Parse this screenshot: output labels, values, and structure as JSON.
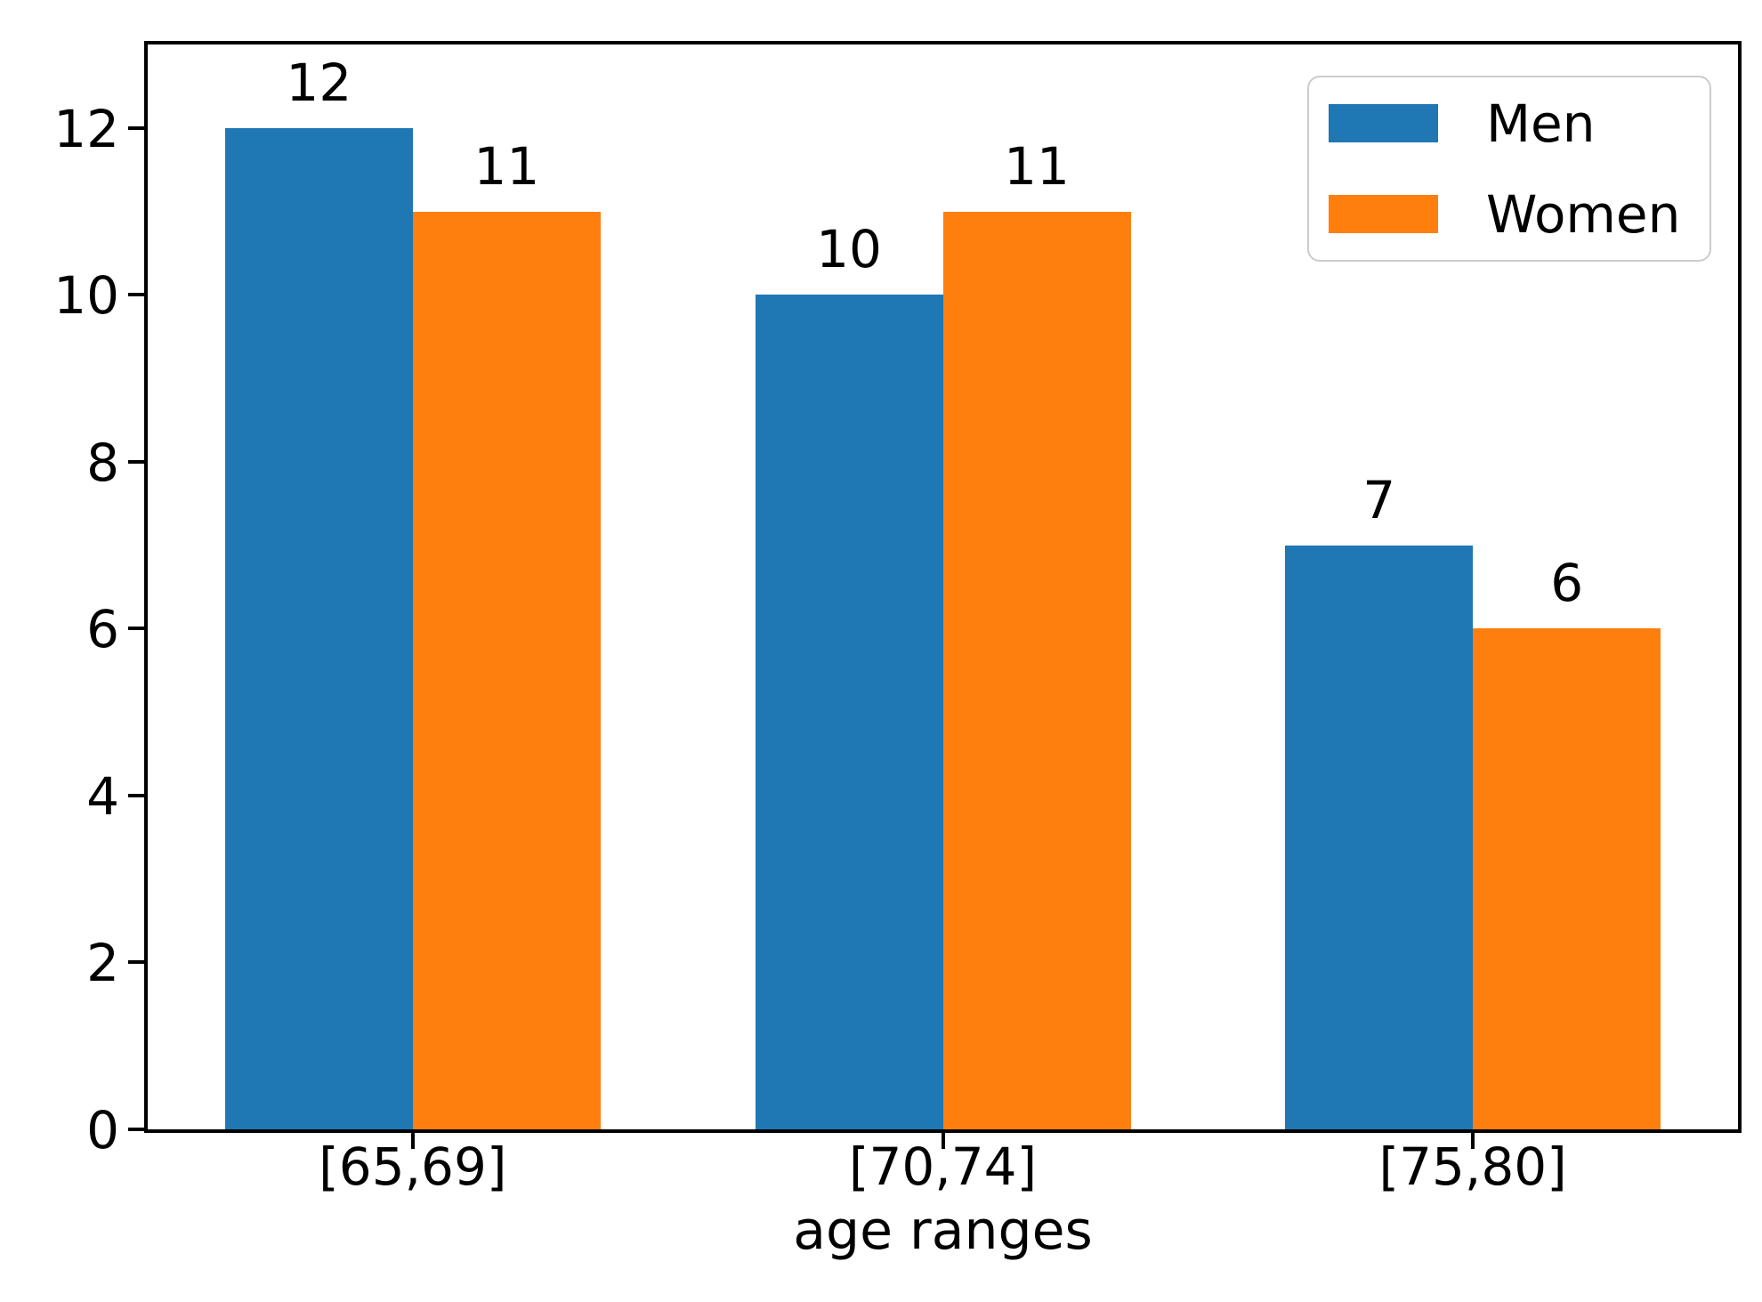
{
  "chart_data": {
    "type": "bar",
    "title": "",
    "xlabel": "age ranges",
    "ylabel": "",
    "categories": [
      "[65,69]",
      "[70,74]",
      "[75,80]"
    ],
    "series": [
      {
        "name": "Men",
        "color": "#1f77b4",
        "values": [
          12,
          10,
          7
        ]
      },
      {
        "name": "Women",
        "color": "#ff7f0e",
        "values": [
          11,
          11,
          6
        ]
      }
    ],
    "bar_value_labels_shown": true,
    "yticks": [
      "0",
      "2",
      "4",
      "6",
      "8",
      "10",
      "12"
    ],
    "ytick_values": [
      0,
      2,
      4,
      6,
      8,
      10,
      12
    ],
    "ylim": [
      0,
      13
    ],
    "grid": false,
    "legend": {
      "position": "upper right",
      "entries": [
        {
          "label": "Men",
          "color": "#1f77b4"
        },
        {
          "label": "Women",
          "color": "#ff7f0e"
        }
      ]
    },
    "colors": {
      "axis": "#000000",
      "text": "#000000",
      "background": "#ffffff",
      "legend_border": "#cccccc"
    }
  }
}
